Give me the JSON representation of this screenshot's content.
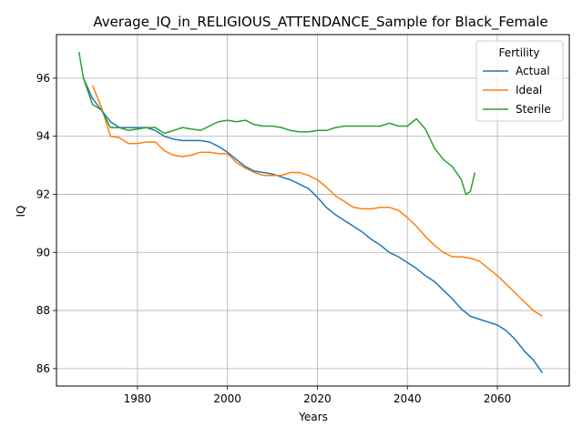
{
  "chart_data": {
    "type": "line",
    "title": "Average_IQ_in_RELIGIOUS_ATTENDANCE_Sample for Black_Female",
    "xlabel": "Years",
    "ylabel": "IQ",
    "xlim": [
      1962,
      2076
    ],
    "ylim": [
      85.4,
      97.5
    ],
    "xticks": [
      1980,
      2000,
      2020,
      2040,
      2060
    ],
    "yticks": [
      86,
      88,
      90,
      92,
      94,
      96
    ],
    "grid": true,
    "legend": {
      "title": "Fertility",
      "placement": "top-right"
    },
    "series": [
      {
        "name": "Actual",
        "color": "#1f77b4",
        "x": [
          1968,
          1970,
          1972,
          1974,
          1976,
          1978,
          1980,
          1982,
          1984,
          1986,
          1988,
          1990,
          1992,
          1994,
          1996,
          1998,
          2000,
          2002,
          2004,
          2006,
          2008,
          2010,
          2012,
          2014,
          2016,
          2018,
          2020,
          2022,
          2024,
          2026,
          2028,
          2030,
          2032,
          2034,
          2036,
          2038,
          2040,
          2042,
          2044,
          2046,
          2048,
          2050,
          2052,
          2054,
          2056,
          2058,
          2060,
          2062,
          2064,
          2066,
          2068,
          2070
        ],
        "values": [
          96.0,
          95.3,
          94.9,
          94.5,
          94.3,
          94.3,
          94.3,
          94.3,
          94.2,
          94.0,
          93.9,
          93.85,
          93.85,
          93.85,
          93.8,
          93.65,
          93.45,
          93.2,
          92.95,
          92.8,
          92.75,
          92.7,
          92.6,
          92.5,
          92.35,
          92.2,
          91.9,
          91.55,
          91.3,
          91.1,
          90.9,
          90.7,
          90.45,
          90.25,
          90.0,
          89.85,
          89.65,
          89.45,
          89.2,
          89.0,
          88.7,
          88.4,
          88.05,
          87.8,
          87.7,
          87.6,
          87.5,
          87.3,
          87.0,
          86.6,
          86.3,
          85.85
        ]
      },
      {
        "name": "Ideal",
        "color": "#ff7f0e",
        "x": [
          1970,
          1972,
          1974,
          1976,
          1978,
          1980,
          1982,
          1984,
          1986,
          1988,
          1990,
          1992,
          1994,
          1996,
          1998,
          2000,
          2002,
          2004,
          2006,
          2008,
          2010,
          2012,
          2014,
          2016,
          2018,
          2020,
          2022,
          2024,
          2026,
          2028,
          2030,
          2032,
          2034,
          2036,
          2038,
          2040,
          2042,
          2044,
          2046,
          2048,
          2050,
          2052,
          2054,
          2056,
          2058,
          2060,
          2062,
          2064,
          2066,
          2068,
          2070
        ],
        "values": [
          95.75,
          95.0,
          94.0,
          93.95,
          93.75,
          93.75,
          93.8,
          93.8,
          93.5,
          93.35,
          93.3,
          93.35,
          93.45,
          93.45,
          93.4,
          93.4,
          93.1,
          92.9,
          92.75,
          92.65,
          92.65,
          92.65,
          92.75,
          92.75,
          92.65,
          92.5,
          92.25,
          91.95,
          91.75,
          91.55,
          91.5,
          91.5,
          91.55,
          91.55,
          91.45,
          91.2,
          90.9,
          90.55,
          90.25,
          90.0,
          89.85,
          89.85,
          89.8,
          89.7,
          89.45,
          89.2,
          88.9,
          88.6,
          88.3,
          88.0,
          87.8
        ]
      },
      {
        "name": "Sterile",
        "color": "#2ca02c",
        "x": [
          1967,
          1968,
          1970,
          1972,
          1974,
          1976,
          1978,
          1980,
          1982,
          1984,
          1986,
          1988,
          1990,
          1992,
          1994,
          1996,
          1998,
          2000,
          2002,
          2004,
          2006,
          2008,
          2010,
          2012,
          2014,
          2016,
          2018,
          2020,
          2022,
          2024,
          2026,
          2028,
          2030,
          2032,
          2034,
          2036,
          2038,
          2040,
          2042,
          2044,
          2046,
          2048,
          2050,
          2052,
          2053,
          2054,
          2055
        ],
        "values": [
          96.9,
          96.0,
          95.1,
          94.9,
          94.3,
          94.3,
          94.2,
          94.25,
          94.3,
          94.3,
          94.1,
          94.2,
          94.3,
          94.25,
          94.2,
          94.35,
          94.5,
          94.55,
          94.5,
          94.55,
          94.4,
          94.35,
          94.35,
          94.3,
          94.2,
          94.15,
          94.15,
          94.2,
          94.2,
          94.3,
          94.35,
          94.35,
          94.35,
          94.35,
          94.35,
          94.45,
          94.35,
          94.35,
          94.6,
          94.25,
          93.6,
          93.2,
          92.95,
          92.5,
          92.0,
          92.1,
          92.75
        ]
      }
    ]
  }
}
